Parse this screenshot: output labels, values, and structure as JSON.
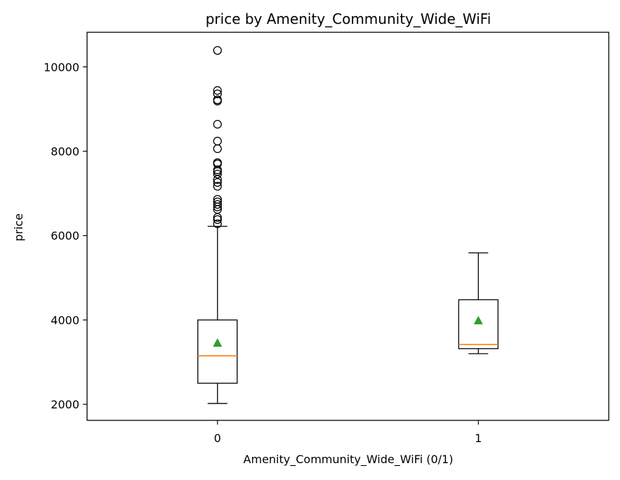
{
  "chart_data": {
    "type": "box",
    "title": "price by Amenity_Community_Wide_WiFi",
    "xlabel": "Amenity_Community_Wide_WiFi (0/1)",
    "ylabel": "price",
    "categories": [
      "0",
      "1"
    ],
    "yticks": [
      2000,
      4000,
      6000,
      8000,
      10000
    ],
    "ylim": [
      1620,
      10820
    ],
    "grid": false,
    "boxes": [
      {
        "category": "0",
        "whisker_low": 2020,
        "q1": 2500,
        "median": 3150,
        "q3": 4000,
        "whisker_high": 6220,
        "mean": 3450,
        "outliers": [
          6280,
          6380,
          6430,
          6620,
          6680,
          6740,
          6800,
          6860,
          7170,
          7260,
          7330,
          7460,
          7520,
          7560,
          7700,
          7730,
          8060,
          8240,
          8640,
          9190,
          9220,
          9360,
          9440,
          10390
        ]
      },
      {
        "category": "1",
        "whisker_low": 3200,
        "q1": 3320,
        "median": 3420,
        "q3": 4480,
        "whisker_high": 5590,
        "mean": 3980,
        "outliers": []
      }
    ],
    "colors": {
      "box": "#000000",
      "median": "#ff7f0e",
      "mean": "#2ca02c",
      "outlier": "#000000"
    }
  }
}
